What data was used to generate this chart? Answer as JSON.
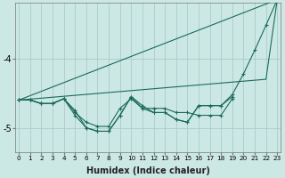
{
  "xlabel": "Humidex (Indice chaleur)",
  "background_color": "#cce8e4",
  "grid_color": "#aaccc8",
  "line_color": "#1a6b5a",
  "ylim": [
    -5.35,
    -3.2
  ],
  "yticks": [
    -5,
    -4
  ],
  "xlim": [
    -0.3,
    23.3
  ],
  "xticks": [
    0,
    1,
    2,
    3,
    4,
    5,
    6,
    7,
    8,
    9,
    10,
    11,
    12,
    13,
    14,
    15,
    16,
    17,
    18,
    19,
    20,
    21,
    22,
    23
  ],
  "line_straight_top": {
    "x": [
      0,
      23
    ],
    "y": [
      -4.6,
      -3.15
    ],
    "marker": false
  },
  "line_straight_bottom": {
    "x": [
      0,
      22,
      23
    ],
    "y": [
      -4.6,
      -4.3,
      -3.15
    ],
    "marker": false
  },
  "line_jagged_main": {
    "x": [
      0,
      1,
      2,
      3,
      4,
      5,
      6,
      7,
      8,
      9,
      10,
      11,
      12,
      13,
      14,
      15,
      16,
      17,
      18,
      19,
      20,
      21,
      22,
      23
    ],
    "y": [
      -4.6,
      -4.6,
      -4.65,
      -4.65,
      -4.58,
      -4.75,
      -5.0,
      -5.05,
      -5.05,
      -4.82,
      -4.55,
      -4.68,
      -4.78,
      -4.78,
      -4.88,
      -4.92,
      -4.68,
      -4.68,
      -4.68,
      -4.52,
      -4.22,
      -3.88,
      -3.52,
      -3.15
    ],
    "marker": true
  },
  "line_jagged_mid": {
    "x": [
      0,
      1,
      2,
      3,
      4,
      5,
      6,
      7,
      8,
      9,
      10,
      11,
      12,
      13,
      14,
      15,
      16,
      17,
      18,
      19
    ],
    "y": [
      -4.6,
      -4.6,
      -4.65,
      -4.65,
      -4.58,
      -4.78,
      -4.92,
      -4.98,
      -4.98,
      -4.72,
      -4.58,
      -4.72,
      -4.72,
      -4.72,
      -4.78,
      -4.78,
      -4.82,
      -4.82,
      -4.82,
      -4.58
    ],
    "marker": true
  },
  "line_jagged_inner": {
    "x": [
      0,
      1,
      2,
      3,
      4,
      5,
      6,
      7,
      8,
      9,
      10,
      11,
      12,
      13,
      14,
      15,
      16,
      17,
      18,
      19
    ],
    "y": [
      -4.6,
      -4.6,
      -4.65,
      -4.65,
      -4.58,
      -4.82,
      -5.0,
      -5.05,
      -5.05,
      -4.82,
      -4.55,
      -4.72,
      -4.78,
      -4.78,
      -4.88,
      -4.92,
      -4.68,
      -4.68,
      -4.68,
      -4.55
    ],
    "marker": true
  }
}
